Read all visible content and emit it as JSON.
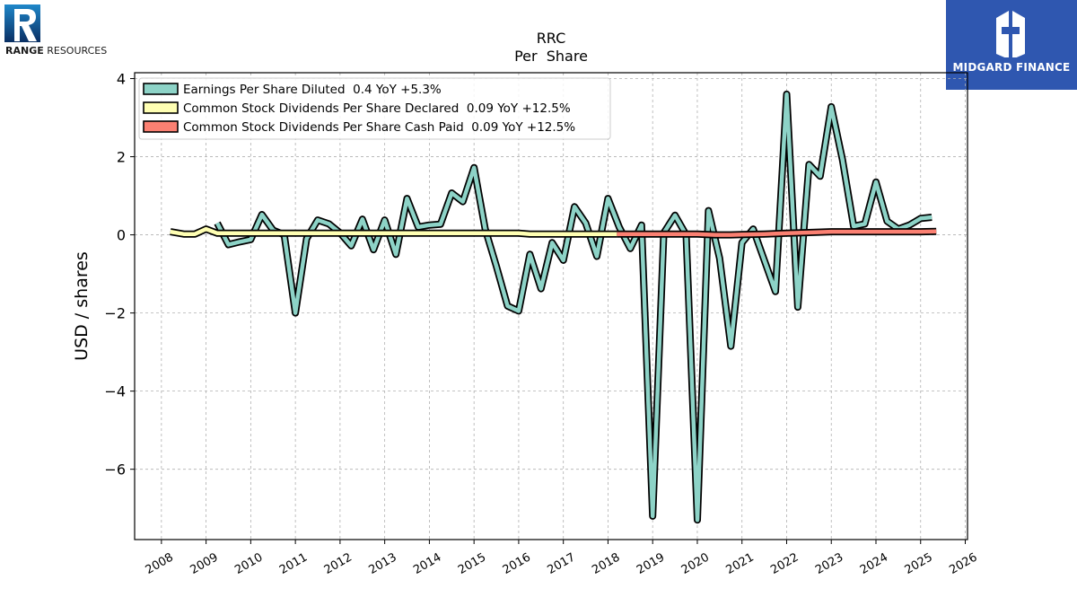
{
  "logos": {
    "left": {
      "text_bold": "RANGE",
      "text_rest": " RESOURCES",
      "color": "#0b63a8"
    },
    "right": {
      "text": "MIDGARD FINANCE",
      "background": "#2f57b0"
    }
  },
  "chart_data": {
    "type": "line",
    "title": "RRC",
    "subtitle": "Per  Share",
    "ylabel": "USD / shares",
    "xlabel": "",
    "xlim": [
      2007.4,
      2026.05
    ],
    "ylim": [
      -7.8,
      4.15
    ],
    "x_ticks": [
      "2008",
      "2009",
      "2010",
      "2011",
      "2012",
      "2013",
      "2014",
      "2015",
      "2016",
      "2017",
      "2018",
      "2019",
      "2020",
      "2021",
      "2022",
      "2023",
      "2024",
      "2025",
      "2026"
    ],
    "y_ticks": [
      4,
      2,
      0,
      -2,
      -4,
      -6
    ],
    "y_tick_labels": [
      "4",
      "2",
      "0",
      "−2",
      "−4",
      "−6"
    ],
    "grid": true,
    "legend_position": "top-left",
    "series": [
      {
        "name": "Earnings Per Share Diluted  0.4 YoY +5.3%",
        "color": "#8dd3c7",
        "points": [
          [
            2009.25,
            0.3
          ],
          [
            2009.5,
            -0.25
          ],
          [
            2009.75,
            -0.18
          ],
          [
            2010.0,
            -0.12
          ],
          [
            2010.25,
            0.52
          ],
          [
            2010.5,
            0.12
          ],
          [
            2010.75,
            0.0
          ],
          [
            2011.0,
            -2.0
          ],
          [
            2011.25,
            -0.1
          ],
          [
            2011.5,
            0.38
          ],
          [
            2011.75,
            0.28
          ],
          [
            2012.0,
            0.05
          ],
          [
            2012.25,
            -0.28
          ],
          [
            2012.5,
            0.4
          ],
          [
            2012.75,
            -0.38
          ],
          [
            2013.0,
            0.38
          ],
          [
            2013.25,
            -0.5
          ],
          [
            2013.5,
            0.93
          ],
          [
            2013.75,
            0.2
          ],
          [
            2014.0,
            0.25
          ],
          [
            2014.25,
            0.27
          ],
          [
            2014.5,
            1.07
          ],
          [
            2014.75,
            0.85
          ],
          [
            2015.0,
            1.72
          ],
          [
            2015.25,
            0.15
          ],
          [
            2015.5,
            -0.8
          ],
          [
            2015.75,
            -1.82
          ],
          [
            2016.0,
            -1.95
          ],
          [
            2016.25,
            -0.5
          ],
          [
            2016.5,
            -1.38
          ],
          [
            2016.75,
            -0.2
          ],
          [
            2017.0,
            -0.65
          ],
          [
            2017.25,
            0.72
          ],
          [
            2017.5,
            0.3
          ],
          [
            2017.75,
            -0.55
          ],
          [
            2018.0,
            0.93
          ],
          [
            2018.25,
            0.2
          ],
          [
            2018.5,
            -0.35
          ],
          [
            2018.75,
            0.25
          ],
          [
            2019.0,
            -7.2
          ],
          [
            2019.25,
            0.05
          ],
          [
            2019.5,
            0.5
          ],
          [
            2019.75,
            0.0
          ],
          [
            2020.0,
            -7.3
          ],
          [
            2020.25,
            0.62
          ],
          [
            2020.5,
            -0.6
          ],
          [
            2020.75,
            -2.85
          ],
          [
            2021.0,
            -0.2
          ],
          [
            2021.25,
            0.15
          ],
          [
            2021.5,
            -0.65
          ],
          [
            2021.75,
            -1.45
          ],
          [
            2022.0,
            3.6
          ],
          [
            2022.25,
            -1.85
          ],
          [
            2022.5,
            1.8
          ],
          [
            2022.75,
            1.5
          ],
          [
            2023.0,
            3.28
          ],
          [
            2023.25,
            1.92
          ],
          [
            2023.5,
            0.22
          ],
          [
            2023.75,
            0.28
          ],
          [
            2024.0,
            1.35
          ],
          [
            2024.25,
            0.35
          ],
          [
            2024.5,
            0.15
          ],
          [
            2024.75,
            0.25
          ],
          [
            2025.0,
            0.42
          ],
          [
            2025.25,
            0.45
          ]
        ]
      },
      {
        "name": "Common Stock Dividends Per Share Declared  0.09 YoY +12.5%",
        "color": "#ffffb3",
        "points": [
          [
            2008.2,
            0.08
          ],
          [
            2008.5,
            0.02
          ],
          [
            2008.75,
            0.02
          ],
          [
            2009.0,
            0.15
          ],
          [
            2009.25,
            0.04
          ],
          [
            2009.5,
            0.04
          ],
          [
            2010.0,
            0.04
          ],
          [
            2011.0,
            0.04
          ],
          [
            2012.0,
            0.04
          ],
          [
            2013.0,
            0.04
          ],
          [
            2014.0,
            0.04
          ],
          [
            2015.0,
            0.04
          ],
          [
            2016.0,
            0.04
          ],
          [
            2016.25,
            0.02
          ],
          [
            2017.0,
            0.02
          ],
          [
            2018.0,
            0.02
          ],
          [
            2018.2,
            0.02
          ]
        ]
      },
      {
        "name": "Common Stock Dividends Per Share Cash Paid  0.09 YoY +12.5%",
        "color": "#fb8072",
        "points": [
          [
            2018.2,
            0.02
          ],
          [
            2019.0,
            0.02
          ],
          [
            2019.5,
            0.02
          ],
          [
            2020.0,
            0.02
          ],
          [
            2020.4,
            0.0
          ],
          [
            2020.75,
            0.0
          ],
          [
            2021.0,
            0.01
          ],
          [
            2021.5,
            0.02
          ],
          [
            2022.0,
            0.04
          ],
          [
            2022.5,
            0.06
          ],
          [
            2023.0,
            0.08
          ],
          [
            2023.5,
            0.08
          ],
          [
            2024.0,
            0.08
          ],
          [
            2024.5,
            0.08
          ],
          [
            2025.0,
            0.08
          ],
          [
            2025.35,
            0.09
          ]
        ]
      }
    ]
  }
}
